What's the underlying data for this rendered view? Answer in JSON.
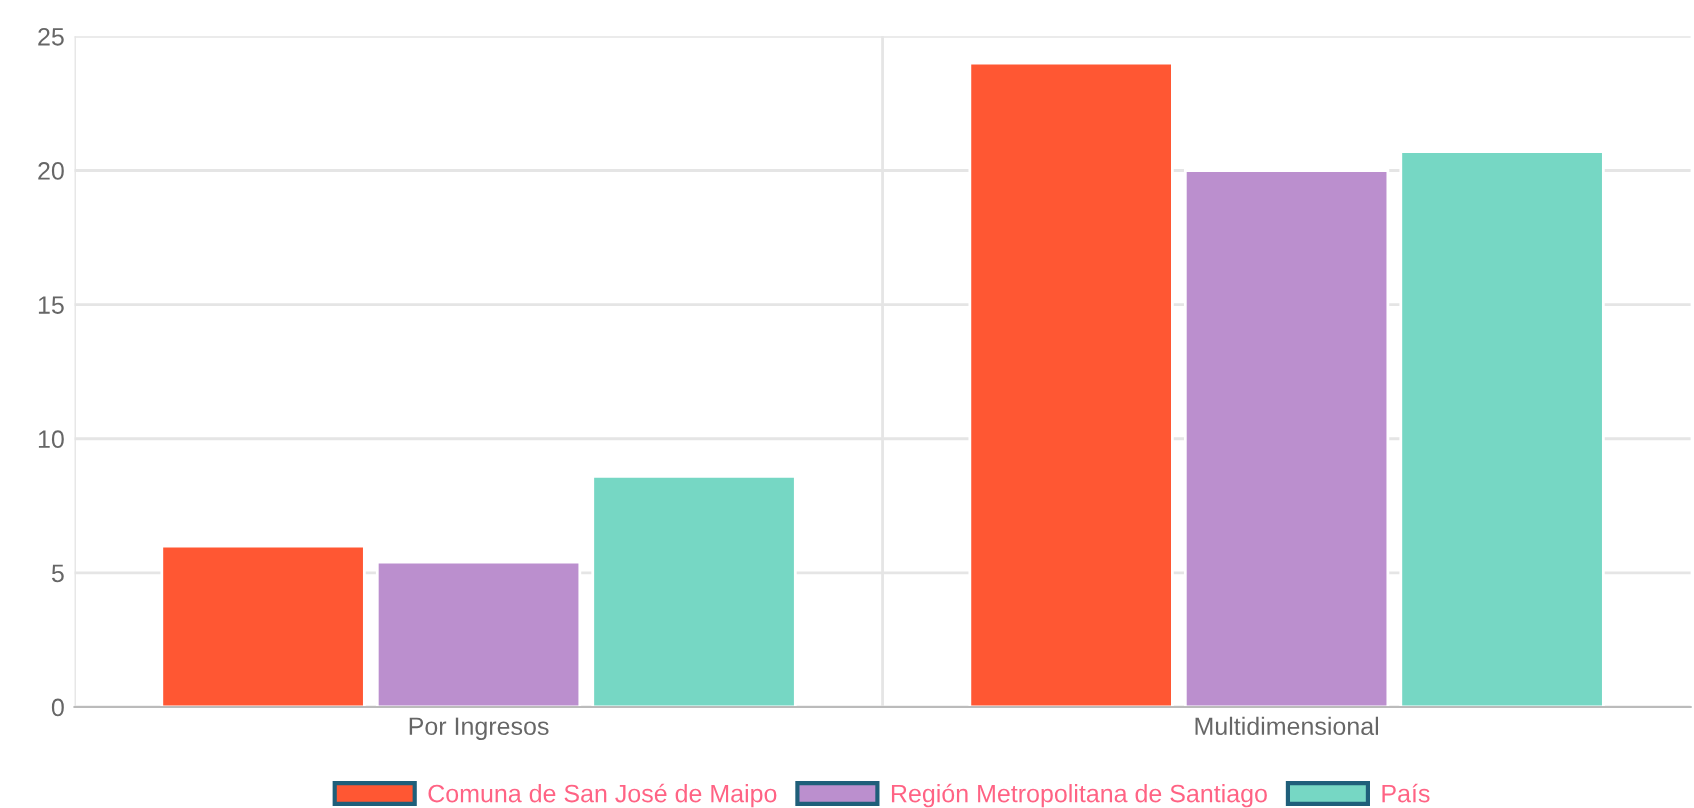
{
  "chart_data": {
    "type": "bar",
    "categories": [
      "Por Ingresos",
      "Multidimensional"
    ],
    "series": [
      {
        "name": "Comuna de San José de Maipo",
        "color": "#ff5733",
        "values": [
          6.0,
          24.0
        ]
      },
      {
        "name": "Región Metropolitana de Santiago",
        "color": "#bb8fce",
        "values": [
          5.4,
          20.0
        ]
      },
      {
        "name": "País",
        "color": "#76d7c4",
        "values": [
          8.6,
          20.7
        ]
      }
    ],
    "ylim": [
      0,
      25
    ],
    "yticks": [
      0,
      5,
      10,
      15,
      20,
      25
    ],
    "grid": true,
    "legend": "bottom"
  }
}
